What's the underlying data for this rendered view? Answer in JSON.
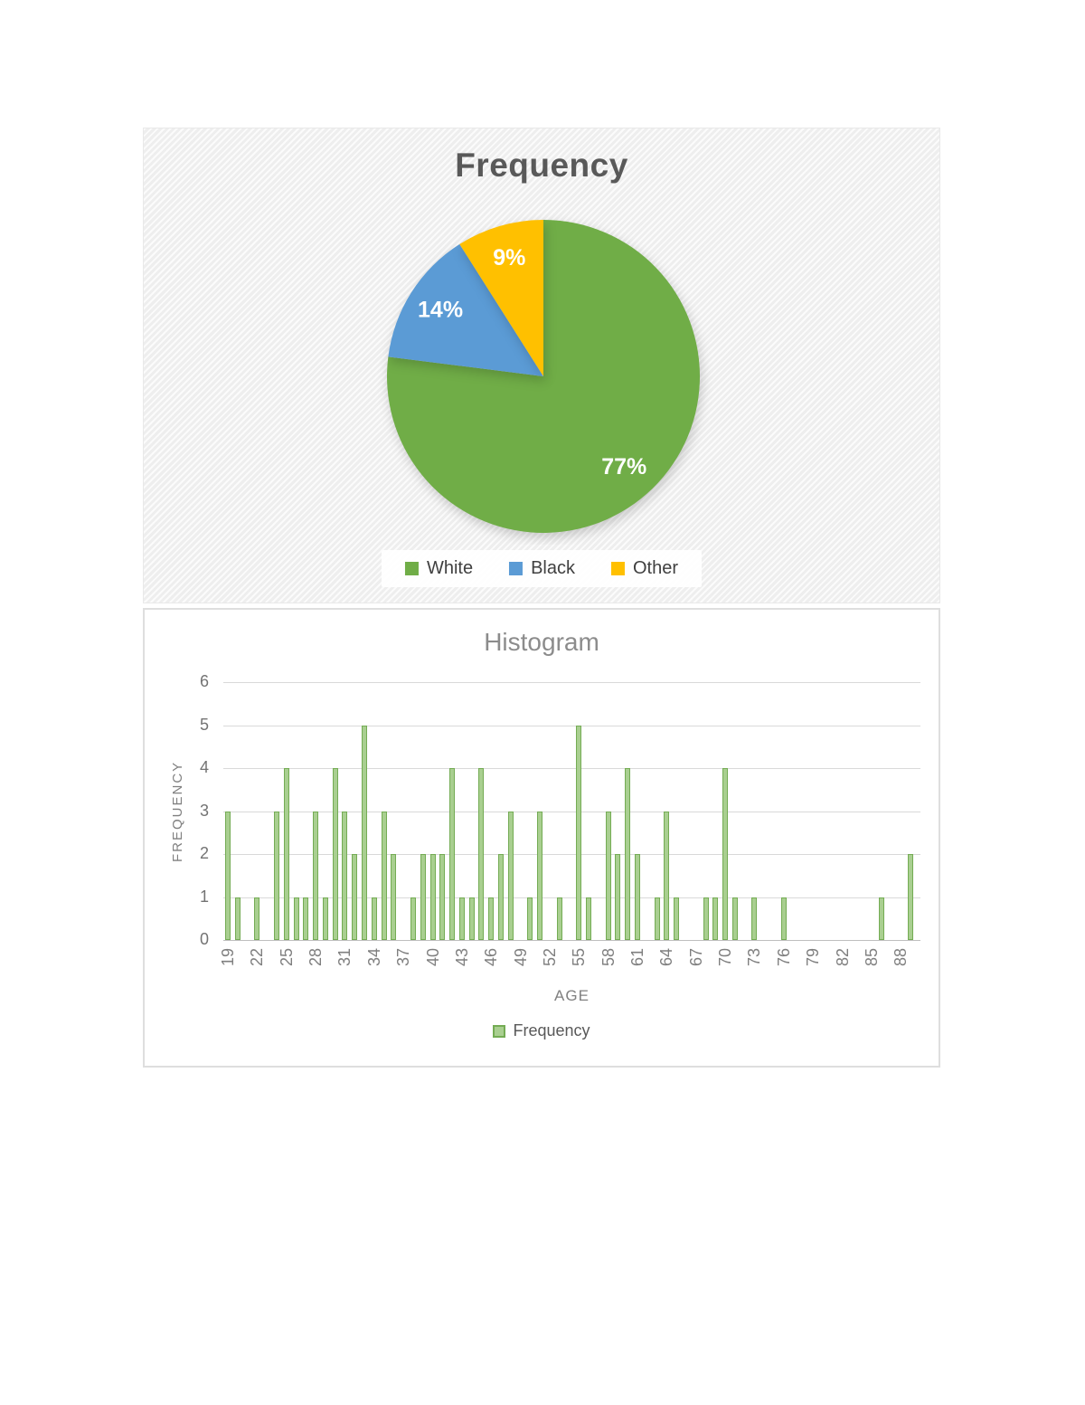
{
  "chart_data": [
    {
      "type": "pie",
      "title": "Frequency",
      "slices": [
        {
          "label": "White",
          "value": 77,
          "data_label": "77%",
          "color": "#70AD47"
        },
        {
          "label": "Black",
          "value": 14,
          "data_label": "14%",
          "color": "#5B9BD5"
        },
        {
          "label": "Other",
          "value": 9,
          "data_label": "9%",
          "color": "#FFC000"
        }
      ],
      "start_angle": "12-oclock",
      "direction": "clockwise",
      "data_label_color": "#FFFFFF",
      "legend_position": "bottom"
    },
    {
      "type": "bar",
      "title": "Histogram",
      "xlabel": "AGE",
      "ylabel": "FREQUENCY",
      "categories": [
        19,
        20,
        21,
        22,
        23,
        24,
        25,
        26,
        27,
        28,
        29,
        30,
        31,
        32,
        33,
        34,
        35,
        36,
        37,
        38,
        39,
        40,
        41,
        42,
        43,
        44,
        45,
        46,
        47,
        48,
        49,
        50,
        51,
        52,
        53,
        54,
        55,
        56,
        57,
        58,
        59,
        60,
        61,
        62,
        63,
        64,
        65,
        66,
        67,
        68,
        69,
        70,
        71,
        72,
        73,
        74,
        75,
        76,
        77,
        78,
        79,
        80,
        81,
        82,
        83,
        84,
        85,
        86,
        87,
        88,
        89
      ],
      "series": [
        {
          "name": "Frequency",
          "values": [
            3,
            1,
            0,
            1,
            0,
            3,
            4,
            1,
            1,
            3,
            1,
            4,
            3,
            2,
            5,
            1,
            3,
            2,
            0,
            1,
            2,
            2,
            2,
            4,
            1,
            1,
            4,
            1,
            2,
            3,
            0,
            1,
            3,
            0,
            1,
            0,
            5,
            1,
            0,
            3,
            2,
            4,
            2,
            0,
            1,
            3,
            1,
            0,
            0,
            1,
            1,
            4,
            1,
            0,
            1,
            0,
            0,
            1,
            0,
            0,
            0,
            0,
            0,
            0,
            0,
            0,
            0,
            1,
            0,
            0,
            2
          ]
        }
      ],
      "x_axis_tick_labels": [
        "19",
        "22",
        "25",
        "28",
        "31",
        "34",
        "37",
        "40",
        "43",
        "46",
        "49",
        "52",
        "55",
        "58",
        "61",
        "64",
        "67",
        "70",
        "73",
        "76",
        "79",
        "82",
        "85",
        "88"
      ],
      "yticks": [
        0,
        1,
        2,
        3,
        4,
        5,
        6
      ],
      "ylim": [
        0,
        6
      ],
      "grid": true,
      "bar_fill": "#A9CF90",
      "bar_border": "#74AC54",
      "legend_position": "bottom"
    }
  ]
}
